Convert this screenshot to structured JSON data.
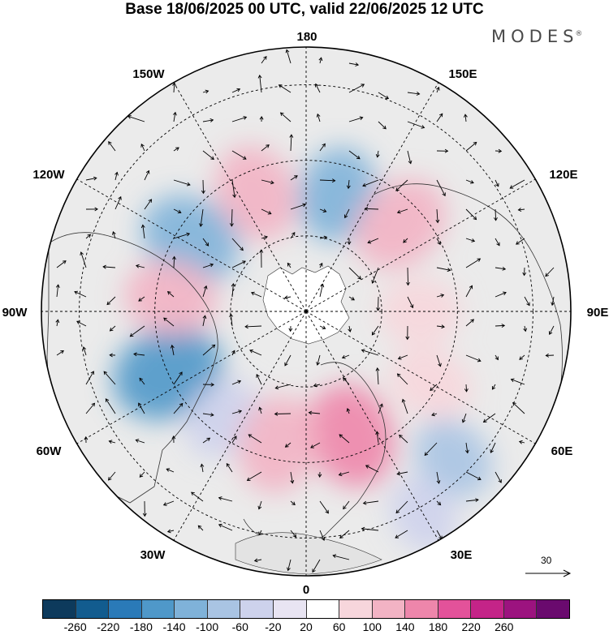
{
  "title": "Base 18/06/2025 00 UTC, valid 22/06/2025 12 UTC",
  "logo": "MODES",
  "logo_mark": "®",
  "longitude_labels": [
    "180",
    "150E",
    "120E",
    "90E",
    "60E",
    "30E",
    "0",
    "30W",
    "60W",
    "90W",
    "120W",
    "150W"
  ],
  "vector_reference": "30",
  "colorbar": {
    "colors": [
      "#0d3a5c",
      "#125c8f",
      "#2a7ab8",
      "#4f98c9",
      "#7fb2d9",
      "#a9c4e3",
      "#cdd2ec",
      "#e8e4f2",
      "#ffffff",
      "#f7d6dc",
      "#f2b3c4",
      "#ee86ab",
      "#e3529a",
      "#c42488",
      "#9c137f",
      "#6a0a6e"
    ],
    "labels": [
      "-260",
      "-220",
      "-180",
      "-140",
      "-100",
      "-60",
      "-20",
      "20",
      "60",
      "100",
      "140",
      "180",
      "220",
      "260"
    ]
  },
  "anomaly_blobs": [
    {
      "lon": 165,
      "colat": 32,
      "value": -110
    },
    {
      "lon": 133,
      "colat": 34,
      "value": 130
    },
    {
      "lon": 203,
      "colat": 34,
      "value": 120
    },
    {
      "lon": 238,
      "colat": 36,
      "value": -140
    },
    {
      "lon": 294,
      "colat": 40,
      "value": -180
    },
    {
      "lon": 264,
      "colat": 36,
      "value": 100
    },
    {
      "lon": 322,
      "colat": 36,
      "value": -60
    },
    {
      "lon": 20,
      "colat": 35,
      "value": 150
    },
    {
      "lon": 348,
      "colat": 36,
      "value": 120
    },
    {
      "lon": 60,
      "colat": 38,
      "value": 70
    },
    {
      "lon": 90,
      "colat": 30,
      "value": 60
    },
    {
      "lon": 45,
      "colat": 55,
      "value": -70
    },
    {
      "lon": 30,
      "colat": 62,
      "value": -40
    }
  ]
}
